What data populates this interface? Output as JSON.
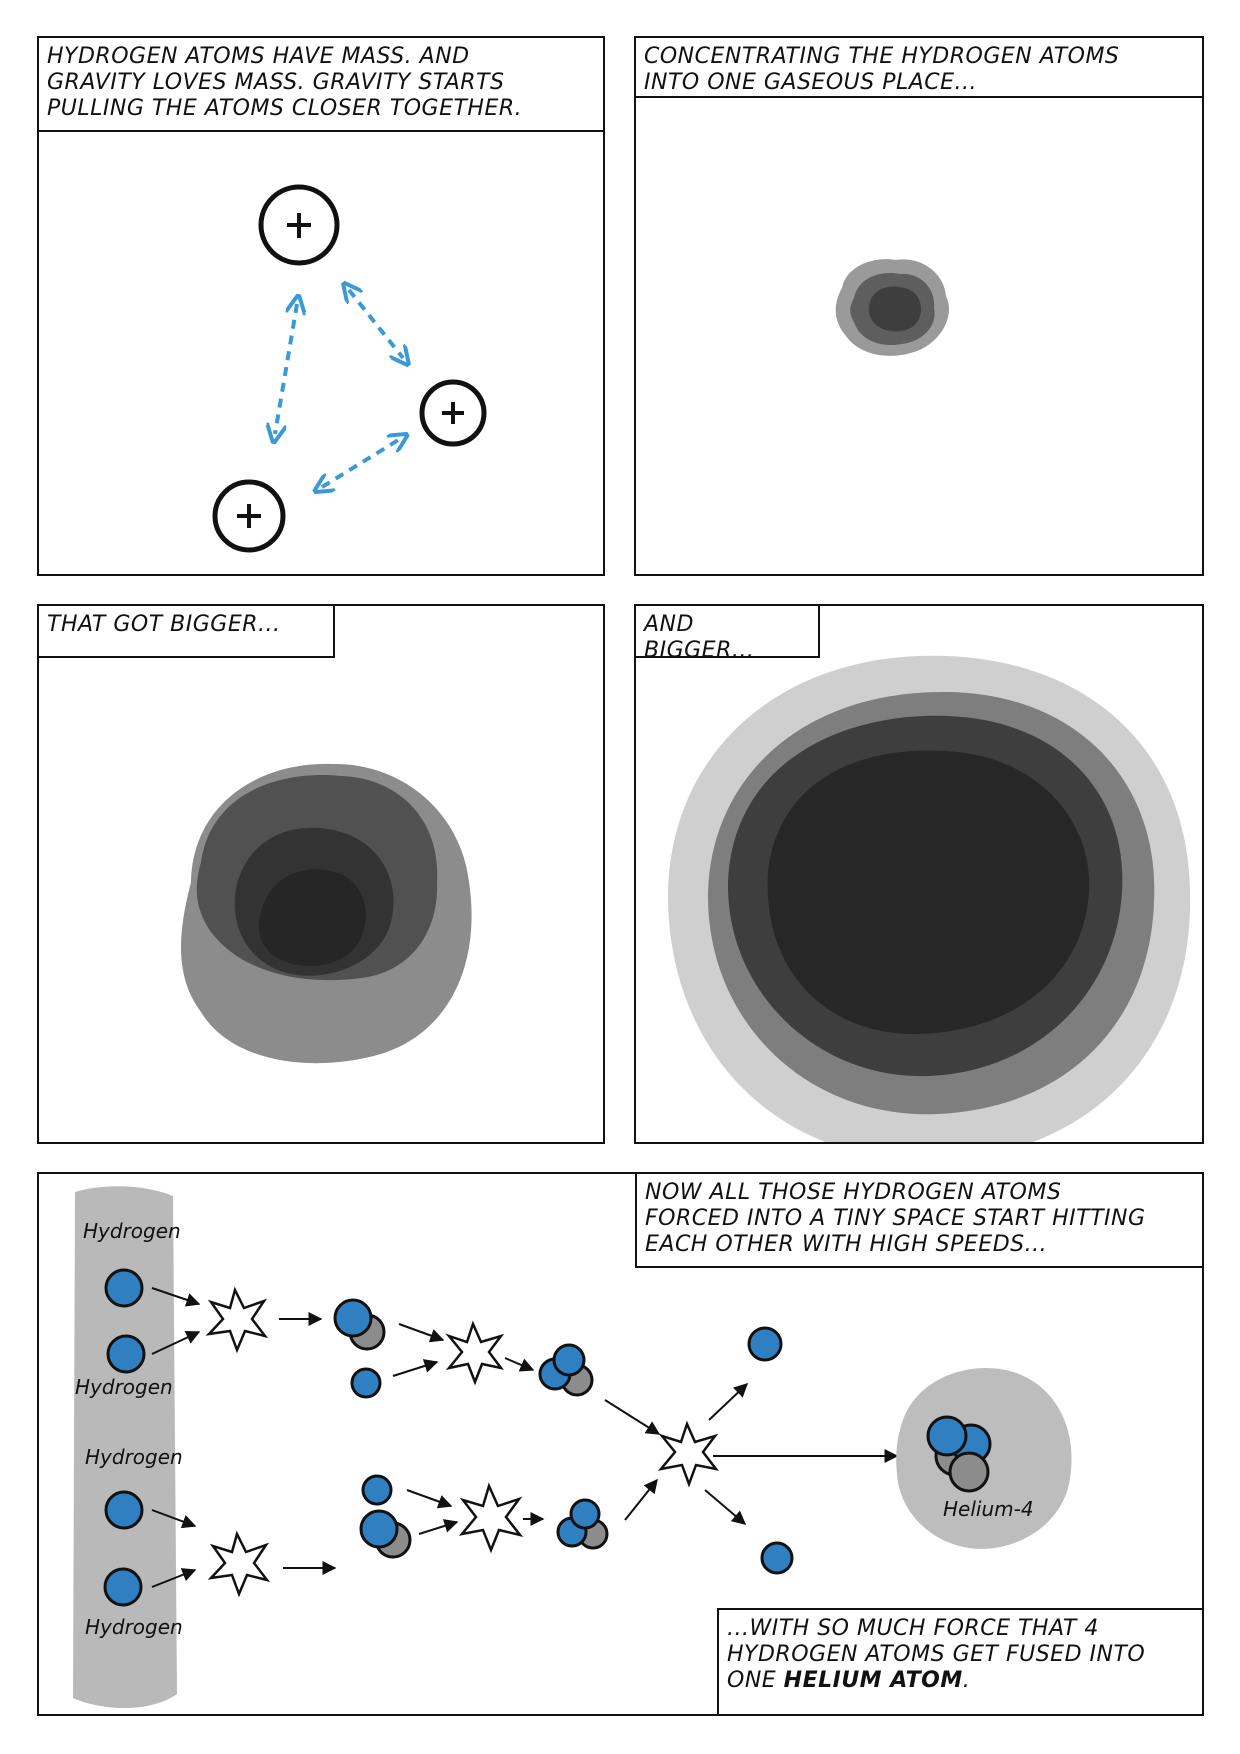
{
  "panels": [
    {
      "id": "p1",
      "caption": "HYDROGEN ATOMS HAVE MASS. AND\nGRAVITY LOVES MASS. GRAVITY STARTS\nPULLING THE ATOMS CLOSER TOGETHER."
    },
    {
      "id": "p2",
      "caption": "CONCENTRATING THE HYDROGEN ATOMS\nINTO ONE GASEOUS PLACE..."
    },
    {
      "id": "p3",
      "caption": "THAT GOT BIGGER..."
    },
    {
      "id": "p4",
      "caption": "AND BIGGER..."
    },
    {
      "id": "p5",
      "caption_top": "NOW ALL THOSE HYDROGEN ATOMS\nFORCED INTO A TINY SPACE START HITTING\nEACH OTHER WITH HIGH SPEEDS...",
      "caption_bottom_pre": "...WITH SO MUCH FORCE THAT 4\nHYDROGEN ATOMS GET FUSED INTO\nONE ",
      "caption_bottom_bold": "HELIUM ATOM",
      "caption_bottom_post": ".",
      "labels": {
        "hydrogen_1": "Hydrogen",
        "hydrogen_2": "Hydrogen",
        "hydrogen_3": "Hydrogen",
        "hydrogen_4": "Hydrogen",
        "helium": "Helium-4"
      }
    }
  ],
  "colors": {
    "ink": "#111111",
    "arrow_blue": "#3a9ad9",
    "proton_blue": "#2f7fc1",
    "neutron_gray": "#8c8c8c",
    "gas_light": "#c9c9c9",
    "gas_mid": "#8a8a8a",
    "gas_dark": "#3a3a3a"
  },
  "icons": [
    "plus-icon",
    "double-arrow-icon",
    "star-burst-icon",
    "arrow-icon"
  ]
}
